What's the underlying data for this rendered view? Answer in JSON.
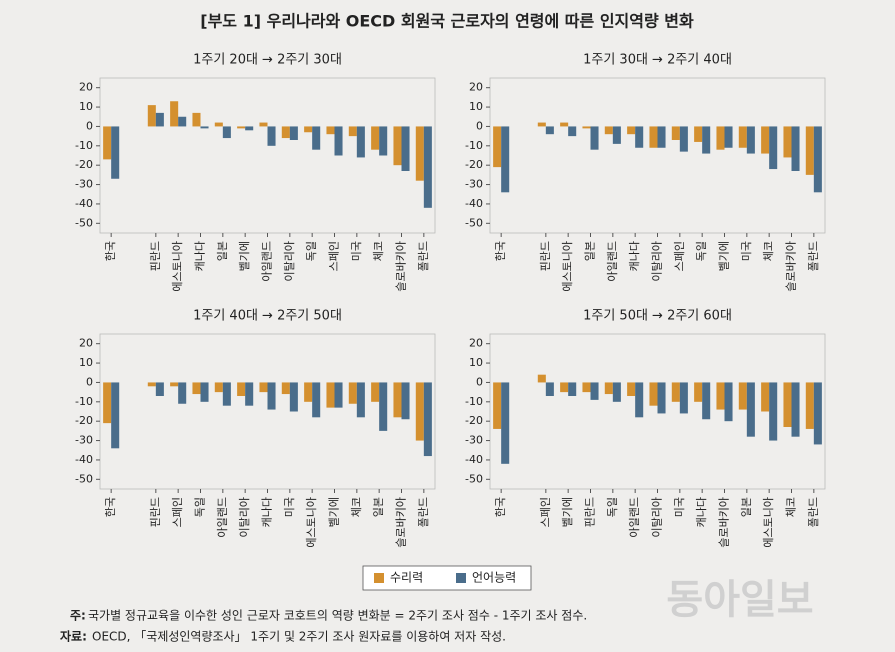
{
  "title": "[부도 1] 우리나라와 OECD 회원국 근로자의 연령에 따른 인지역량 변화",
  "chart_data": [
    {
      "type": "bar",
      "title": "1주기 20대 → 2주기 30대",
      "categories": [
        "한국",
        null,
        "핀란드",
        "에스토니아",
        "캐나다",
        "일본",
        "벨기에",
        "아일랜드",
        "이탈리아",
        "독일",
        "스페인",
        "미국",
        "체코",
        "슬로바키아",
        "폴란드"
      ],
      "series": [
        {
          "name": "수리력",
          "color": "#d4902f",
          "values": [
            -17,
            null,
            11,
            13,
            7,
            2,
            -1,
            2,
            -6,
            -3,
            -4,
            -5,
            -12,
            -20,
            -28
          ]
        },
        {
          "name": "언어능력",
          "color": "#4a6d8b",
          "values": [
            -27,
            null,
            7,
            5,
            -1,
            -6,
            -2,
            -10,
            -7,
            -12,
            -15,
            -16,
            -15,
            -23,
            -42
          ]
        }
      ],
      "ylim": [
        -55,
        25
      ],
      "yticks": [
        -50,
        -40,
        -30,
        -20,
        -10,
        0,
        10,
        20
      ]
    },
    {
      "type": "bar",
      "title": "1주기 30대 → 2주기 40대",
      "categories": [
        "한국",
        null,
        "핀란드",
        "에스토니아",
        "일본",
        "아일랜드",
        "캐나다",
        "이탈리아",
        "스페인",
        "독일",
        "벨기에",
        "미국",
        "체코",
        "슬로바키아",
        "폴란드"
      ],
      "series": [
        {
          "color": "#d4902f",
          "values": [
            -21,
            null,
            2,
            2,
            -1,
            -4,
            -4,
            -11,
            -7,
            -8,
            -12,
            -11,
            -14,
            -16,
            -25
          ]
        },
        {
          "color": "#4a6d8b",
          "values": [
            -34,
            null,
            -4,
            -5,
            -12,
            -9,
            -11,
            -11,
            -13,
            -14,
            -11,
            -14,
            -22,
            -23,
            -34
          ]
        }
      ],
      "ylim": [
        -55,
        25
      ],
      "yticks": [
        -50,
        -40,
        -30,
        -20,
        -10,
        0,
        10,
        20
      ]
    },
    {
      "type": "bar",
      "title": "1주기 40대 → 2주기 50대",
      "categories": [
        "한국",
        null,
        "핀란드",
        "스페인",
        "독일",
        "아일랜드",
        "이탈리아",
        "캐나다",
        "미국",
        "에스토니아",
        "벨기에",
        "체코",
        "일본",
        "슬로바키아",
        "폴란드"
      ],
      "series": [
        {
          "color": "#d4902f",
          "values": [
            -21,
            null,
            -2,
            -2,
            -6,
            -5,
            -7,
            -5,
            -6,
            -10,
            -13,
            -11,
            -10,
            -18,
            -30
          ]
        },
        {
          "color": "#4a6d8b",
          "values": [
            -34,
            null,
            -7,
            -11,
            -10,
            -12,
            -12,
            -14,
            -15,
            -18,
            -13,
            -18,
            -25,
            -19,
            -38
          ]
        }
      ],
      "ylim": [
        -55,
        25
      ],
      "yticks": [
        -50,
        -40,
        -30,
        -20,
        -10,
        0,
        10,
        20
      ]
    },
    {
      "type": "bar",
      "title": "1주기 50대 → 2주기 60대",
      "categories": [
        "한국",
        null,
        "스페인",
        "벨기에",
        "핀란드",
        "독일",
        "아일랜드",
        "이탈리아",
        "미국",
        "캐나다",
        "슬로바키아",
        "일본",
        "에스토니아",
        "체코",
        "폴란드"
      ],
      "series": [
        {
          "color": "#d4902f",
          "values": [
            -24,
            null,
            4,
            -5,
            -5,
            -6,
            -7,
            -12,
            -10,
            -10,
            -14,
            -14,
            -15,
            -23,
            -24
          ]
        },
        {
          "color": "#4a6d8b",
          "values": [
            -42,
            null,
            -7,
            -7,
            -9,
            -10,
            -18,
            -16,
            -16,
            -19,
            -20,
            -28,
            -30,
            -28,
            -32
          ]
        }
      ],
      "ylim": [
        -55,
        25
      ],
      "yticks": [
        -50,
        -40,
        -30,
        -20,
        -10,
        0,
        10,
        20
      ]
    }
  ],
  "notes": [
    {
      "label": "주:",
      "text": "국가별 정규교육을 이수한 성인 근로자 코호트의 역량 변화분 = 2주기 조사 점수 - 1주기 조사 점수."
    },
    {
      "label": "자료:",
      "text": "OECD, 「국제성인역량조사」 1주기 및 2주기 조사 원자료를 이용하여 저자 작성."
    }
  ],
  "watermark": "동아일보"
}
